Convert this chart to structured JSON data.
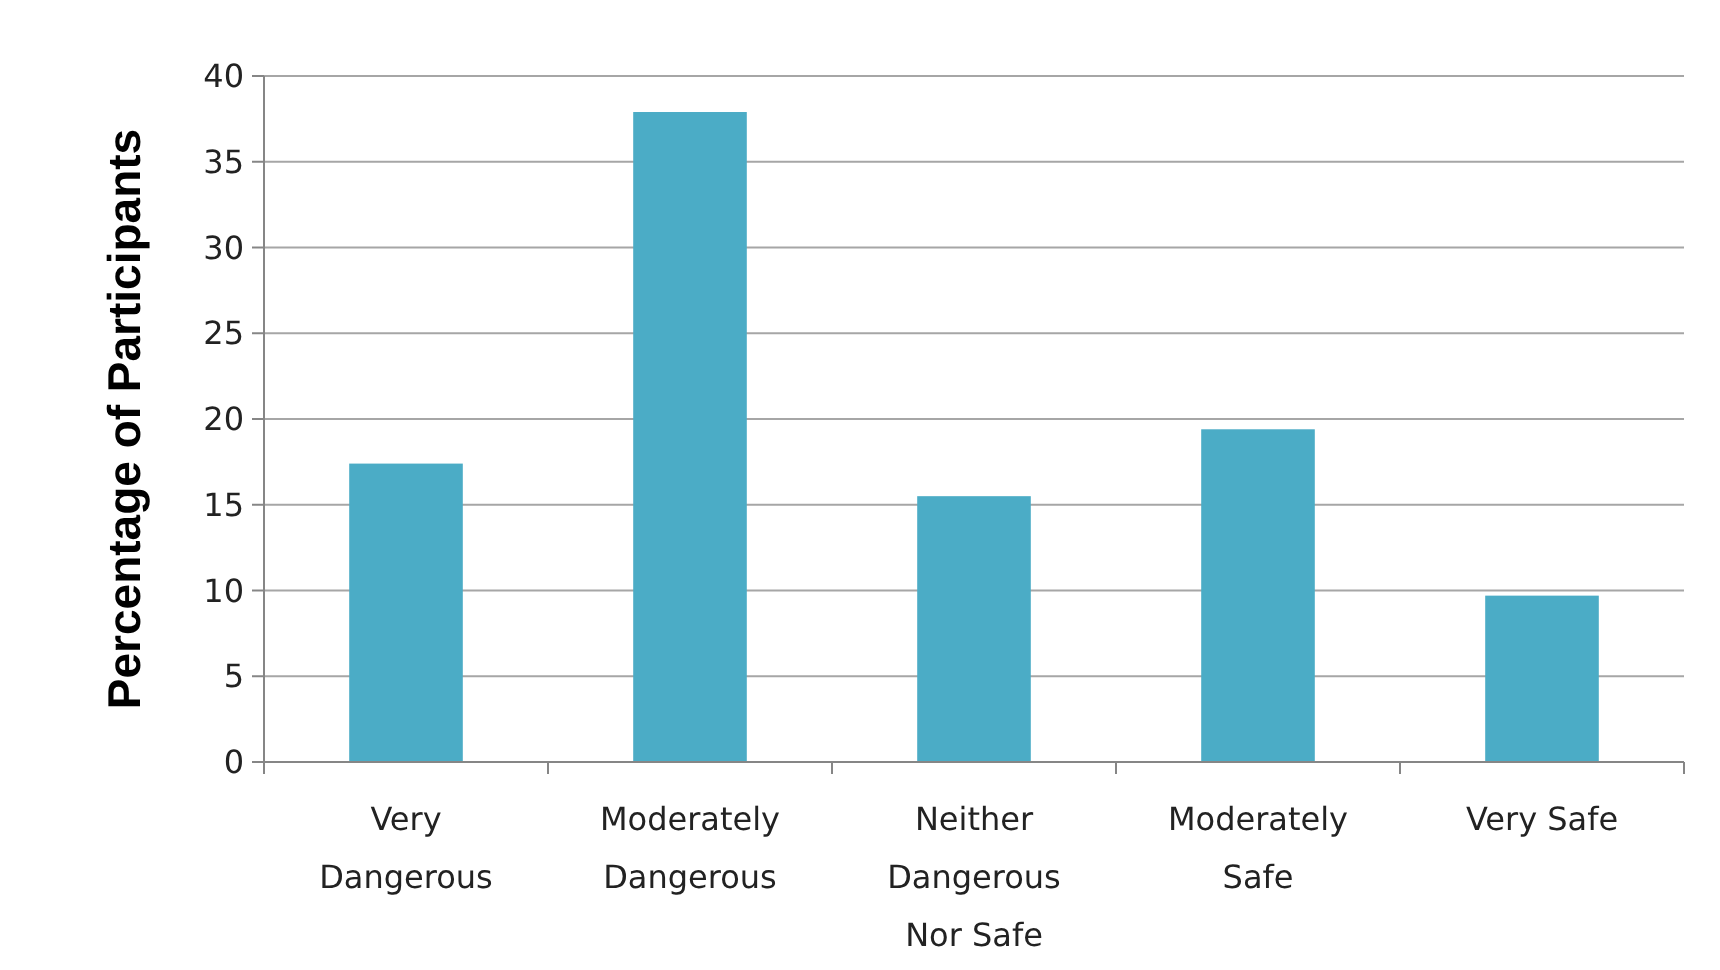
{
  "chart_data": {
    "type": "bar",
    "ylabel": "Percentage of Participants",
    "categories": [
      "Very Dangerous",
      "Moderately Dangerous",
      "Neither Dangerous Nor Safe",
      "Moderately Safe",
      "Very Safe"
    ],
    "values": [
      17.4,
      37.9,
      15.5,
      19.4,
      9.7
    ],
    "color": "#4bacc6",
    "ylim": [
      0,
      40
    ],
    "yticks": [
      0,
      5,
      10,
      15,
      20,
      25,
      30,
      35,
      40
    ],
    "grid": "y"
  }
}
